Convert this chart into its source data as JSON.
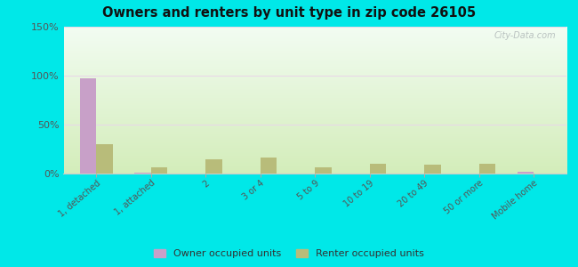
{
  "title": "Owners and renters by unit type in zip code 26105",
  "categories": [
    "1, detached",
    "1, attached",
    "2",
    "3 or 4",
    "5 to 9",
    "10 to 19",
    "20 to 49",
    "50 or more",
    "Mobile home"
  ],
  "owner_values": [
    97,
    1,
    0,
    0,
    0,
    0,
    0,
    0,
    2
  ],
  "renter_values": [
    30,
    6,
    15,
    16,
    6,
    10,
    9,
    10,
    0
  ],
  "owner_color": "#c8a0c8",
  "renter_color": "#b8bc7a",
  "ylim": [
    0,
    150
  ],
  "yticks": [
    0,
    50,
    100,
    150
  ],
  "ytick_labels": [
    "0%",
    "50%",
    "100%",
    "150%"
  ],
  "bg_top": "#f0f8ee",
  "bg_bottom": "#d8ecc0",
  "outer_bg": "#00e8e8",
  "watermark": "City-Data.com",
  "bar_width": 0.3,
  "legend_owner": "Owner occupied units",
  "legend_renter": "Renter occupied units",
  "grid_color": "#e8d8e8",
  "spine_color": "#cccccc"
}
